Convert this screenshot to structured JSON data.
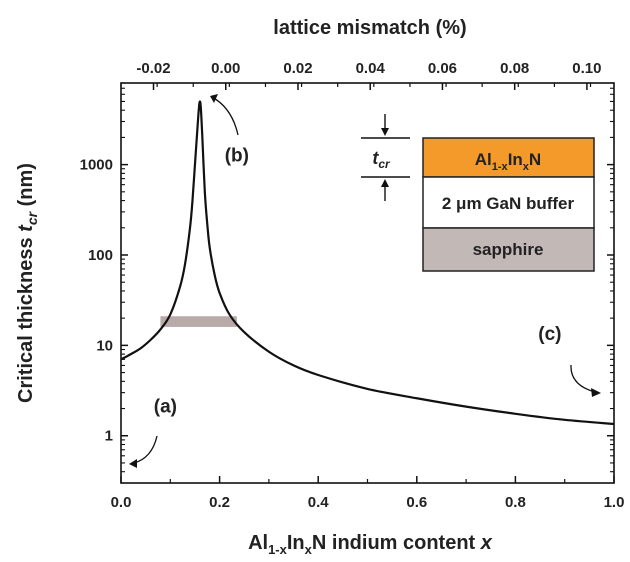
{
  "chart_data": {
    "type": "line",
    "top_axis": {
      "label": "lattice mismatch (%)",
      "ticks": [
        -0.02,
        0.0,
        0.02,
        0.04,
        0.06,
        0.08,
        0.1
      ],
      "tick_labels": [
        "-0.02",
        "0.00",
        "0.02",
        "0.04",
        "0.06",
        "0.08",
        "0.10"
      ],
      "lim": [
        -0.029,
        0.1075
      ]
    },
    "xlabel": {
      "pre": "Al",
      "sub1": "1-x",
      "mid": "In",
      "sub2": "x",
      "post": "N indium content ",
      "var": "x"
    },
    "ylabel": {
      "main": "Critical thickness ",
      "var": "t",
      "sub": "cr",
      "unit": " (nm)"
    },
    "xlim": [
      0.0,
      1.0
    ],
    "ylim": [
      0.3,
      8000
    ],
    "yscale": "log",
    "x_ticks": [
      0.0,
      0.2,
      0.4,
      0.6,
      0.8,
      1.0
    ],
    "x_tick_labels": [
      "0.0",
      "0.2",
      "0.4",
      "0.6",
      "0.8",
      "1.0"
    ],
    "y_ticks": [
      1,
      10,
      100,
      1000
    ],
    "y_tick_labels": [
      "1",
      "10",
      "100",
      "1000"
    ],
    "series": [
      {
        "color": "#111111",
        "x": [
          0.0,
          0.02,
          0.04,
          0.06,
          0.08,
          0.1,
          0.12,
          0.13,
          0.14,
          0.145,
          0.15,
          0.155,
          0.158,
          0.16,
          0.162,
          0.165,
          0.17,
          0.175,
          0.18,
          0.19,
          0.2,
          0.22,
          0.25,
          0.3,
          0.35,
          0.4,
          0.5,
          0.6,
          0.7,
          0.8,
          0.9,
          1.0
        ],
        "y": [
          7.0,
          8.0,
          9.3,
          11.5,
          15,
          22,
          45,
          80,
          200,
          400,
          1000,
          2500,
          4200,
          5000,
          4200,
          2000,
          500,
          220,
          120,
          60,
          38,
          22,
          14,
          8.5,
          6.0,
          4.7,
          3.3,
          2.6,
          2.1,
          1.75,
          1.5,
          1.35
        ]
      }
    ],
    "shaded_band": {
      "x": [
        0.08,
        0.235
      ],
      "y": [
        16,
        21
      ],
      "color": "#b8aaa8"
    },
    "annotations": [
      {
        "text": "(a)",
        "x": 0.09,
        "y": 1.8
      },
      {
        "text": "(b)",
        "x": 0.235,
        "y": 1080
      },
      {
        "text": "(c)",
        "x": 0.87,
        "y": 11.5
      }
    ],
    "inset": {
      "tcr_var": "t",
      "tcr_sub": "cr",
      "layers": [
        {
          "pre": "Al",
          "sub1": "1-x",
          "mid": "In",
          "sub2": "x",
          "post": "N",
          "color": "#f39a2b"
        },
        {
          "text": "2 μm GaN buffer",
          "color": "#ffffff"
        },
        {
          "text": "sapphire",
          "color": "#c2b8b6"
        }
      ]
    }
  }
}
